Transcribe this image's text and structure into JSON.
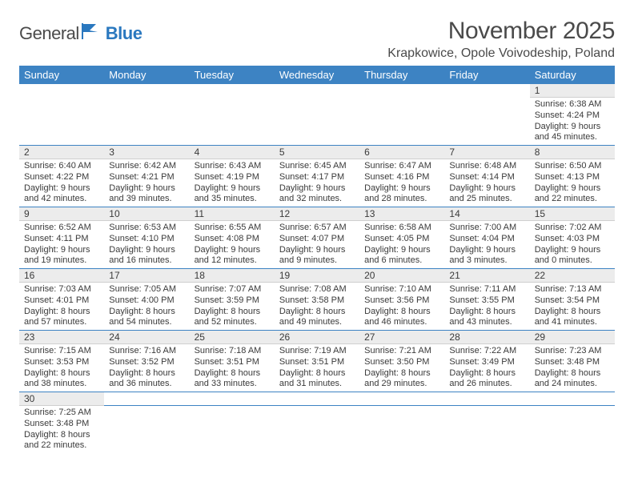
{
  "logo": {
    "general": "General",
    "blue": "Blue"
  },
  "title": "November 2025",
  "location": "Krapkowice, Opole Voivodeship, Poland",
  "colors": {
    "header_bg": "#3d83c3",
    "header_text": "#ffffff",
    "daynum_bg": "#ececec",
    "body_text": "#3a3a3a",
    "rule": "#3d83c3",
    "logo_blue": "#2a78bf",
    "page_bg": "#ffffff"
  },
  "typography": {
    "title_fontsize": 30,
    "location_fontsize": 16,
    "dayheader_fontsize": 13,
    "daynum_fontsize": 12,
    "detail_fontsize": 11
  },
  "day_headers": [
    "Sunday",
    "Monday",
    "Tuesday",
    "Wednesday",
    "Thursday",
    "Friday",
    "Saturday"
  ],
  "weeks": [
    [
      null,
      null,
      null,
      null,
      null,
      null,
      {
        "n": "1",
        "sunrise": "6:38 AM",
        "sunset": "4:24 PM",
        "day_h": 9,
        "day_m": 45
      }
    ],
    [
      {
        "n": "2",
        "sunrise": "6:40 AM",
        "sunset": "4:22 PM",
        "day_h": 9,
        "day_m": 42
      },
      {
        "n": "3",
        "sunrise": "6:42 AM",
        "sunset": "4:21 PM",
        "day_h": 9,
        "day_m": 39
      },
      {
        "n": "4",
        "sunrise": "6:43 AM",
        "sunset": "4:19 PM",
        "day_h": 9,
        "day_m": 35
      },
      {
        "n": "5",
        "sunrise": "6:45 AM",
        "sunset": "4:17 PM",
        "day_h": 9,
        "day_m": 32
      },
      {
        "n": "6",
        "sunrise": "6:47 AM",
        "sunset": "4:16 PM",
        "day_h": 9,
        "day_m": 28
      },
      {
        "n": "7",
        "sunrise": "6:48 AM",
        "sunset": "4:14 PM",
        "day_h": 9,
        "day_m": 25
      },
      {
        "n": "8",
        "sunrise": "6:50 AM",
        "sunset": "4:13 PM",
        "day_h": 9,
        "day_m": 22
      }
    ],
    [
      {
        "n": "9",
        "sunrise": "6:52 AM",
        "sunset": "4:11 PM",
        "day_h": 9,
        "day_m": 19
      },
      {
        "n": "10",
        "sunrise": "6:53 AM",
        "sunset": "4:10 PM",
        "day_h": 9,
        "day_m": 16
      },
      {
        "n": "11",
        "sunrise": "6:55 AM",
        "sunset": "4:08 PM",
        "day_h": 9,
        "day_m": 12
      },
      {
        "n": "12",
        "sunrise": "6:57 AM",
        "sunset": "4:07 PM",
        "day_h": 9,
        "day_m": 9
      },
      {
        "n": "13",
        "sunrise": "6:58 AM",
        "sunset": "4:05 PM",
        "day_h": 9,
        "day_m": 6
      },
      {
        "n": "14",
        "sunrise": "7:00 AM",
        "sunset": "4:04 PM",
        "day_h": 9,
        "day_m": 3
      },
      {
        "n": "15",
        "sunrise": "7:02 AM",
        "sunset": "4:03 PM",
        "day_h": 9,
        "day_m": 0
      }
    ],
    [
      {
        "n": "16",
        "sunrise": "7:03 AM",
        "sunset": "4:01 PM",
        "day_h": 8,
        "day_m": 57
      },
      {
        "n": "17",
        "sunrise": "7:05 AM",
        "sunset": "4:00 PM",
        "day_h": 8,
        "day_m": 54
      },
      {
        "n": "18",
        "sunrise": "7:07 AM",
        "sunset": "3:59 PM",
        "day_h": 8,
        "day_m": 52
      },
      {
        "n": "19",
        "sunrise": "7:08 AM",
        "sunset": "3:58 PM",
        "day_h": 8,
        "day_m": 49
      },
      {
        "n": "20",
        "sunrise": "7:10 AM",
        "sunset": "3:56 PM",
        "day_h": 8,
        "day_m": 46
      },
      {
        "n": "21",
        "sunrise": "7:11 AM",
        "sunset": "3:55 PM",
        "day_h": 8,
        "day_m": 43
      },
      {
        "n": "22",
        "sunrise": "7:13 AM",
        "sunset": "3:54 PM",
        "day_h": 8,
        "day_m": 41
      }
    ],
    [
      {
        "n": "23",
        "sunrise": "7:15 AM",
        "sunset": "3:53 PM",
        "day_h": 8,
        "day_m": 38
      },
      {
        "n": "24",
        "sunrise": "7:16 AM",
        "sunset": "3:52 PM",
        "day_h": 8,
        "day_m": 36
      },
      {
        "n": "25",
        "sunrise": "7:18 AM",
        "sunset": "3:51 PM",
        "day_h": 8,
        "day_m": 33
      },
      {
        "n": "26",
        "sunrise": "7:19 AM",
        "sunset": "3:51 PM",
        "day_h": 8,
        "day_m": 31
      },
      {
        "n": "27",
        "sunrise": "7:21 AM",
        "sunset": "3:50 PM",
        "day_h": 8,
        "day_m": 29
      },
      {
        "n": "28",
        "sunrise": "7:22 AM",
        "sunset": "3:49 PM",
        "day_h": 8,
        "day_m": 26
      },
      {
        "n": "29",
        "sunrise": "7:23 AM",
        "sunset": "3:48 PM",
        "day_h": 8,
        "day_m": 24
      }
    ],
    [
      {
        "n": "30",
        "sunrise": "7:25 AM",
        "sunset": "3:48 PM",
        "day_h": 8,
        "day_m": 22
      },
      null,
      null,
      null,
      null,
      null,
      null
    ]
  ]
}
